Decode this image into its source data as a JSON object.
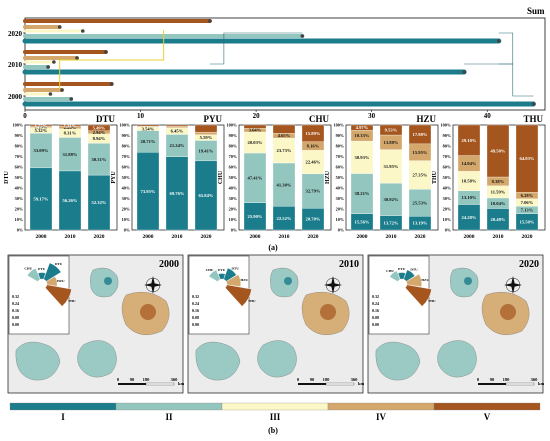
{
  "figure": {
    "top_title": "Sum",
    "label_a": "(a)",
    "label_b": "(b)"
  },
  "colors": {
    "I": "#1b7d8c",
    "II": "#93c6bf",
    "III": "#fbf7c6",
    "IV": "#d4a86c",
    "V": "#a4561e",
    "highlight": "#e6d32e"
  },
  "chart_data": [
    {
      "type": "bar",
      "orientation": "horizontal",
      "title": "Sum",
      "y_ticks": [
        "2000",
        "2010",
        "2020"
      ],
      "x_ticks": [
        "0",
        "10",
        "20",
        "30",
        "40"
      ],
      "xlim": [
        0,
        45
      ],
      "series": [
        {
          "name": "V",
          "values": [
            7.5,
            7.0,
            16.0
          ]
        },
        {
          "name": "IV",
          "values": [
            3.2,
            4.5,
            3.0
          ]
        },
        {
          "name": "III",
          "values": [
            2.2,
            2.5,
            5.0
          ]
        },
        {
          "name": "II",
          "values": [
            4.0,
            2.0,
            24.0
          ]
        },
        {
          "name": "I",
          "values": [
            44.0,
            38.0,
            41.0
          ]
        }
      ]
    },
    {
      "type": "bar",
      "stacked": true,
      "title": "DTU",
      "ylabel": "DTU",
      "categories": [
        "2000",
        "2010",
        "2020"
      ],
      "series": [
        {
          "name": "I",
          "values": [
            59.17,
            56.26,
            52.32
          ]
        },
        {
          "name": "II",
          "values": [
            33.09,
            31.88,
            30.31
          ]
        },
        {
          "name": "III",
          "values": [
            5.32,
            8.31,
            8.94
          ]
        },
        {
          "name": "IV",
          "values": [
            1.15,
            2.24,
            2.94
          ]
        },
        {
          "name": "V",
          "values": [
            1.27,
            1.31,
            5.49
          ]
        }
      ],
      "labels": [
        [
          "59.17%",
          "33.09%",
          "5.32%",
          "1.15%",
          "1.27%"
        ],
        [
          "56.26%",
          "31.88%",
          "8.31%",
          "2.24%",
          "1.31%"
        ],
        [
          "52.32%",
          "30.31%",
          "8.94%",
          "2.94%",
          "5.49%"
        ]
      ],
      "y_ticks": [
        "0%",
        "10%",
        "20%",
        "30%",
        "40%",
        "50%",
        "60%",
        "70%",
        "80%",
        "90%",
        "100%"
      ]
    },
    {
      "type": "bar",
      "stacked": true,
      "title": "PYU",
      "ylabel": "PYU",
      "categories": [
        "2000",
        "2010",
        "2020"
      ],
      "series": [
        {
          "name": "I",
          "values": [
            73.95,
            69.76,
            65.84
          ]
        },
        {
          "name": "II",
          "values": [
            20.71,
            21.24,
            19.41
          ]
        },
        {
          "name": "III",
          "values": [
            3.54,
            6.45,
            5.59
          ]
        },
        {
          "name": "IV",
          "values": [
            0.64,
            1.47,
            2.39
          ]
        },
        {
          "name": "V",
          "values": [
            1.16,
            1.08,
            6.77
          ]
        }
      ],
      "labels": [
        [
          "73.95%",
          "20.71%",
          "3.54%",
          "",
          ""
        ],
        [
          "69.76%",
          "21.24%",
          "6.45%",
          "",
          ""
        ],
        [
          "65.84%",
          "19.41%",
          "5.59%",
          "",
          ""
        ]
      ],
      "y_ticks": [
        "0%",
        "10%",
        "20%",
        "30%",
        "40%",
        "50%",
        "60%",
        "70%",
        "80%",
        "90%",
        "100%"
      ]
    },
    {
      "type": "bar",
      "stacked": true,
      "title": "CHU",
      "ylabel": "CHU",
      "categories": [
        "2000",
        "2010",
        "2020"
      ],
      "series": [
        {
          "name": "I",
          "values": [
            25.9,
            22.52,
            20.7
          ]
        },
        {
          "name": "II",
          "values": [
            47.41,
            41.3,
            32.79
          ]
        },
        {
          "name": "III",
          "values": [
            20.03,
            23.73,
            22.46
          ]
        },
        {
          "name": "IV",
          "values": [
            3.64,
            4.65,
            8.16
          ]
        },
        {
          "name": "V",
          "values": [
            3.02,
            7.8,
            15.89
          ]
        }
      ],
      "labels": [
        [
          "25.90%",
          "47.41%",
          "20.03%",
          "3.64%",
          ""
        ],
        [
          "22.52%",
          "41.30%",
          "23.73%",
          "4.65%",
          ""
        ],
        [
          "20.70%",
          "32.79%",
          "22.46%",
          "8.16%",
          "15.89%"
        ]
      ],
      "y_ticks": [
        "0%",
        "10%",
        "20%",
        "30%",
        "40%",
        "50%",
        "60%",
        "70%",
        "80%",
        "90%",
        "100%"
      ]
    },
    {
      "type": "bar",
      "stacked": true,
      "title": "HZU",
      "ylabel": "HZU",
      "categories": [
        "2000",
        "2010",
        "2020"
      ],
      "series": [
        {
          "name": "I",
          "values": [
            15.56,
            13.72,
            13.19
          ]
        },
        {
          "name": "II",
          "values": [
            38.21,
            30.92,
            25.53
          ]
        },
        {
          "name": "III",
          "values": [
            30.93,
            31.95,
            27.35
          ]
        },
        {
          "name": "IV",
          "values": [
            10.33,
            13.88,
            15.95
          ]
        },
        {
          "name": "V",
          "values": [
            4.97,
            9.53,
            17.98
          ]
        }
      ],
      "labels": [
        [
          "15.56%",
          "38.21%",
          "30.93%",
          "10.33%",
          "4.97%"
        ],
        [
          "13.72%",
          "30.92%",
          "31.95%",
          "13.88%",
          "9.53%"
        ],
        [
          "13.19%",
          "25.53%",
          "27.35%",
          "15.95%",
          "17.98%"
        ]
      ],
      "y_ticks": [
        "0%",
        "10%",
        "20%",
        "30%",
        "40%",
        "50%",
        "60%",
        "70%",
        "80%",
        "90%",
        "100%"
      ]
    },
    {
      "type": "bar",
      "stacked": true,
      "title": "THU",
      "ylabel": "THU",
      "categories": [
        "2000",
        "2010",
        "2020"
      ],
      "series": [
        {
          "name": "I",
          "values": [
            24.28,
            20.48,
            15.5
          ]
        },
        {
          "name": "II",
          "values": [
            13.1,
            10.04,
            7.13
          ]
        },
        {
          "name": "III",
          "values": [
            18.58,
            11.59,
            7.06
          ]
        },
        {
          "name": "IV",
          "values": [
            14.94,
            8.38,
            6.28
          ]
        },
        {
          "name": "V",
          "values": [
            29.1,
            49.5,
            64.03
          ]
        }
      ],
      "labels": [
        [
          "24.28%",
          "13.10%",
          "18.58%",
          "14.94%",
          "29.10%"
        ],
        [
          "20.48%",
          "10.04%",
          "11.59%",
          "8.38%",
          "49.50%"
        ],
        [
          "15.50%",
          "7.13%",
          "7.06%",
          "6.28%",
          "64.03%"
        ]
      ],
      "y_ticks": [
        "0%",
        "10%",
        "20%",
        "30%",
        "40%",
        "50%",
        "60%",
        "70%",
        "80%",
        "90%",
        "100%"
      ]
    }
  ],
  "maps": [
    {
      "year": "2000",
      "radial_labels": [
        "CHU",
        "PYU",
        "DTU",
        "HZU",
        "THU"
      ],
      "radial_values": [
        0.12,
        0.06,
        0.18,
        0.1,
        0.33
      ],
      "radial_ticks": [
        "0.32",
        "0.24",
        "0.16",
        "0.08",
        "0.00"
      ],
      "scale": [
        "0",
        "90",
        "180",
        "360"
      ],
      "scale_unit": "km"
    },
    {
      "year": "2010",
      "radial_labels": [
        "CHU",
        "PYU",
        "DTU",
        "HZU",
        "THU"
      ],
      "radial_values": [
        0.1,
        0.05,
        0.12,
        0.14,
        0.32
      ],
      "radial_ticks": [
        "0.32",
        "0.24",
        "0.16",
        "0.08",
        "0.00"
      ],
      "scale": [
        "0",
        "90",
        "180",
        "360"
      ],
      "scale_unit": "km"
    },
    {
      "year": "2020",
      "radial_labels": [
        "CHU",
        "PYU",
        "DTU",
        "HZU",
        "THU"
      ],
      "radial_values": [
        0.09,
        0.06,
        0.1,
        0.15,
        0.32
      ],
      "radial_ticks": [
        "0.32",
        "0.24",
        "0.16",
        "0.08",
        "0.00"
      ],
      "scale": [
        "0",
        "90",
        "180",
        "360"
      ],
      "scale_unit": "km"
    }
  ],
  "legend": [
    "I",
    "II",
    "III",
    "IV",
    "V"
  ]
}
